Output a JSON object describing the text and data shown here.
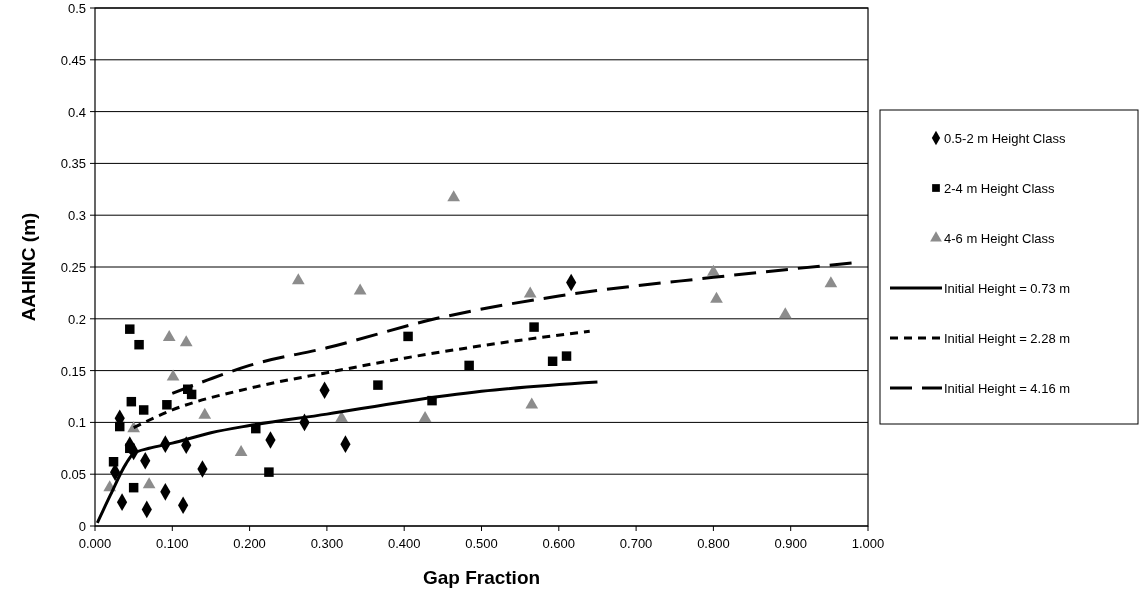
{
  "chart_data": {
    "type": "scatter",
    "xlabel": "Gap Fraction",
    "ylabel": "AAHINC (m)",
    "xlim": [
      0,
      1
    ],
    "ylim": [
      0,
      0.5
    ],
    "xticks": [
      {
        "value": 0,
        "label": "0.000"
      },
      {
        "value": 0.1,
        "label": "0.100"
      },
      {
        "value": 0.2,
        "label": "0.200"
      },
      {
        "value": 0.3,
        "label": "0.300"
      },
      {
        "value": 0.4,
        "label": "0.400"
      },
      {
        "value": 0.5,
        "label": "0.500"
      },
      {
        "value": 0.6,
        "label": "0.600"
      },
      {
        "value": 0.7,
        "label": "0.700"
      },
      {
        "value": 0.8,
        "label": "0.800"
      },
      {
        "value": 0.9,
        "label": "0.900"
      },
      {
        "value": 1,
        "label": "1.000"
      }
    ],
    "yticks": [
      0,
      0.05,
      0.1,
      0.15,
      0.2,
      0.25,
      0.3,
      0.35,
      0.4,
      0.45,
      0.5
    ],
    "grid": "y",
    "legend": "right",
    "series": [
      {
        "name": "0.5-2 m Height Class",
        "marker": "diamond",
        "color": "#000000",
        "x": [
          0.032,
          0.035,
          0.067,
          0.065,
          0.091,
          0.091,
          0.118,
          0.114,
          0.139,
          0.227,
          0.271,
          0.297,
          0.045,
          0.05,
          0.026,
          0.324,
          0.616
        ],
        "values": [
          0.104,
          0.023,
          0.016,
          0.063,
          0.079,
          0.033,
          0.078,
          0.02,
          0.055,
          0.083,
          0.1,
          0.131,
          0.078,
          0.072,
          0.052,
          0.079,
          0.235
        ]
      },
      {
        "name": "2-4 m Height Class",
        "marker": "square",
        "color": "#000000",
        "x": [
          0.045,
          0.057,
          0.047,
          0.063,
          0.093,
          0.12,
          0.125,
          0.032,
          0.024,
          0.05,
          0.045,
          0.208,
          0.225,
          0.366,
          0.405,
          0.484,
          0.436,
          0.568,
          0.592,
          0.61
        ],
        "values": [
          0.19,
          0.175,
          0.12,
          0.112,
          0.117,
          0.132,
          0.127,
          0.096,
          0.062,
          0.037,
          0.075,
          0.094,
          0.052,
          0.136,
          0.183,
          0.155,
          0.121,
          0.192,
          0.159,
          0.164
        ]
      },
      {
        "name": "4-6 m Height Class",
        "marker": "triangle",
        "color": "#8c8c8c",
        "x": [
          0.464,
          0.263,
          0.343,
          0.563,
          0.319,
          0.427,
          0.565,
          0.8,
          0.804,
          0.893,
          0.952,
          0.096,
          0.118,
          0.101,
          0.142,
          0.189,
          0.07,
          0.019,
          0.05
        ],
        "values": [
          0.317,
          0.237,
          0.227,
          0.224,
          0.104,
          0.104,
          0.117,
          0.245,
          0.219,
          0.204,
          0.234,
          0.182,
          0.177,
          0.144,
          0.107,
          0.071,
          0.04,
          0.037,
          0.094
        ]
      },
      {
        "name": "Initial Height = 0.73 m",
        "type": "line",
        "marker": "none",
        "line_style": "solid",
        "color": "#000000",
        "x": [
          0.003,
          0.02,
          0.04,
          0.05,
          0.07,
          0.1,
          0.15,
          0.2,
          0.3,
          0.4,
          0.5,
          0.65
        ],
        "values": [
          0.003,
          0.03,
          0.06,
          0.07,
          0.075,
          0.08,
          0.09,
          0.097,
          0.108,
          0.12,
          0.13,
          0.139
        ]
      },
      {
        "name": "Initial Height = 2.28 m",
        "type": "line",
        "marker": "none",
        "line_style": "dashed",
        "color": "#000000",
        "x": [
          0.05,
          0.1,
          0.2,
          0.3,
          0.4,
          0.5,
          0.64
        ],
        "values": [
          0.095,
          0.112,
          0.133,
          0.148,
          0.162,
          0.174,
          0.188
        ]
      },
      {
        "name": "Initial Height = 4.16 m",
        "type": "line",
        "marker": "none",
        "line_style": "longdash",
        "color": "#000000",
        "x": [
          0.1,
          0.146,
          0.2,
          0.3,
          0.44,
          0.6,
          0.8,
          0.98
        ],
        "values": [
          0.128,
          0.141,
          0.155,
          0.172,
          0.2,
          0.222,
          0.24,
          0.254
        ]
      }
    ]
  }
}
